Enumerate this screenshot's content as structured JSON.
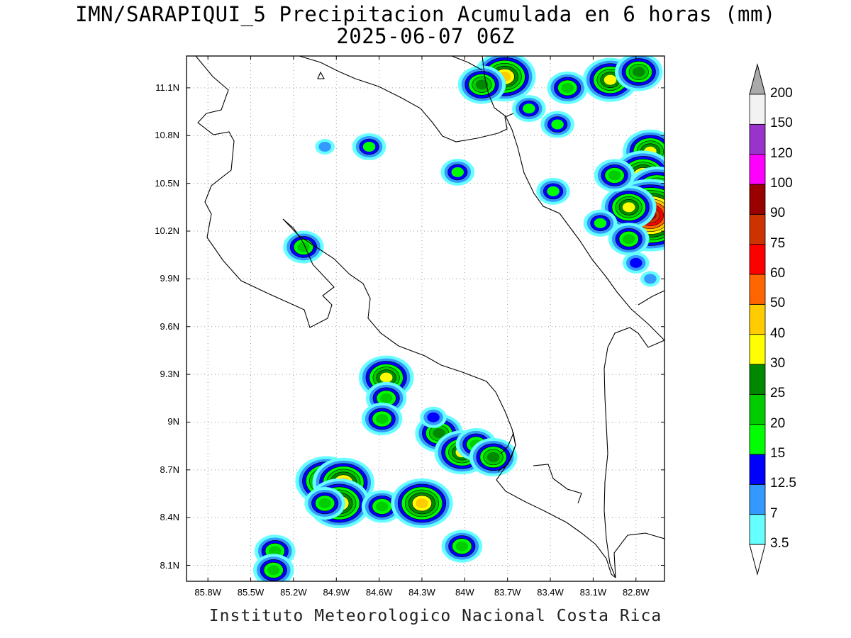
{
  "title": {
    "line1": "IMN/SARAPIQUI_5 Precipitacion Acumulada en 6 horas (mm)",
    "line2": "2025-06-07 06Z"
  },
  "axes": {
    "y_labels": [
      "11.1N",
      "10.8N",
      "10.5N",
      "10.2N",
      "9.9N",
      "9.6N",
      "9.3N",
      "9N",
      "8.7N",
      "8.4N",
      "8.1N"
    ],
    "x_labels": [
      "85.8W",
      "85.5W",
      "85.2W",
      "84.9W",
      "84.6W",
      "84.3W",
      "84W",
      "83.7W",
      "83.4W",
      "83.1W",
      "82.8W"
    ],
    "lat_range": [
      8.0,
      11.3
    ],
    "lon_range": [
      -85.95,
      -82.6
    ],
    "grid": "dotted"
  },
  "colorbar": {
    "labels": [
      "3.5",
      "7",
      "12.5",
      "15",
      "20",
      "25",
      "30",
      "40",
      "50",
      "60",
      "75",
      "90",
      "100",
      "120",
      "150",
      "200"
    ],
    "colors": [
      "#66ffff",
      "#3399ff",
      "#0000ff",
      "#00ff00",
      "#00cc00",
      "#008800",
      "#ffff00",
      "#ffcc00",
      "#ff6600",
      "#ff0000",
      "#cc3300",
      "#990000",
      "#ff00ff",
      "#9933cc",
      "#f2f2f2"
    ],
    "end_high_color": "#aaaaaa",
    "end_low_color": "#ffffff"
  },
  "precip_cells": [
    {
      "lon": -84.55,
      "lat": 9.28,
      "mm": 32
    },
    {
      "lon": -84.55,
      "lat": 9.15,
      "mm": 20
    },
    {
      "lon": -84.58,
      "lat": 9.02,
      "mm": 20
    },
    {
      "lon": -84.18,
      "lat": 8.93,
      "mm": 25
    },
    {
      "lon": -84.22,
      "lat": 9.03,
      "mm": 12.5
    },
    {
      "lon": -84.02,
      "lat": 8.81,
      "mm": 32
    },
    {
      "lon": -83.92,
      "lat": 8.86,
      "mm": 20
    },
    {
      "lon": -83.8,
      "lat": 8.78,
      "mm": 25
    },
    {
      "lon": -84.97,
      "lat": 8.63,
      "mm": 40
    },
    {
      "lon": -84.85,
      "lat": 8.62,
      "mm": 45
    },
    {
      "lon": -84.88,
      "lat": 8.49,
      "mm": 42
    },
    {
      "lon": -84.98,
      "lat": 8.49,
      "mm": 20
    },
    {
      "lon": -84.58,
      "lat": 8.47,
      "mm": 20
    },
    {
      "lon": -84.3,
      "lat": 8.49,
      "mm": 40
    },
    {
      "lon": -84.02,
      "lat": 8.22,
      "mm": 20
    },
    {
      "lon": -85.33,
      "lat": 8.19,
      "mm": 20
    },
    {
      "lon": -85.34,
      "lat": 8.07,
      "mm": 20
    },
    {
      "lon": -85.13,
      "lat": 10.1,
      "mm": 20
    },
    {
      "lon": -84.67,
      "lat": 10.73,
      "mm": 15
    },
    {
      "lon": -84.98,
      "lat": 10.73,
      "mm": 7
    },
    {
      "lon": -84.05,
      "lat": 10.57,
      "mm": 18
    },
    {
      "lon": -83.72,
      "lat": 11.17,
      "mm": 40
    },
    {
      "lon": -83.88,
      "lat": 11.12,
      "mm": 25
    },
    {
      "lon": -83.28,
      "lat": 11.1,
      "mm": 20
    },
    {
      "lon": -83.55,
      "lat": 10.97,
      "mm": 15
    },
    {
      "lon": -83.35,
      "lat": 10.87,
      "mm": 15
    },
    {
      "lon": -82.98,
      "lat": 11.15,
      "mm": 30
    },
    {
      "lon": -82.78,
      "lat": 11.2,
      "mm": 25
    },
    {
      "lon": -82.7,
      "lat": 10.7,
      "mm": 35
    },
    {
      "lon": -82.75,
      "lat": 10.55,
      "mm": 45
    },
    {
      "lon": -82.65,
      "lat": 10.45,
      "mm": 40
    },
    {
      "lon": -82.7,
      "lat": 10.3,
      "mm": 92
    },
    {
      "lon": -82.85,
      "lat": 10.35,
      "mm": 35
    },
    {
      "lon": -82.95,
      "lat": 10.55,
      "mm": 20
    },
    {
      "lon": -83.05,
      "lat": 10.25,
      "mm": 15
    },
    {
      "lon": -83.38,
      "lat": 10.45,
      "mm": 15
    },
    {
      "lon": -82.85,
      "lat": 10.15,
      "mm": 20
    },
    {
      "lon": -82.8,
      "lat": 10.0,
      "mm": 12.5
    },
    {
      "lon": -82.7,
      "lat": 9.9,
      "mm": 10
    }
  ],
  "credit": "Instituto Meteorologico Nacional Costa Rica"
}
